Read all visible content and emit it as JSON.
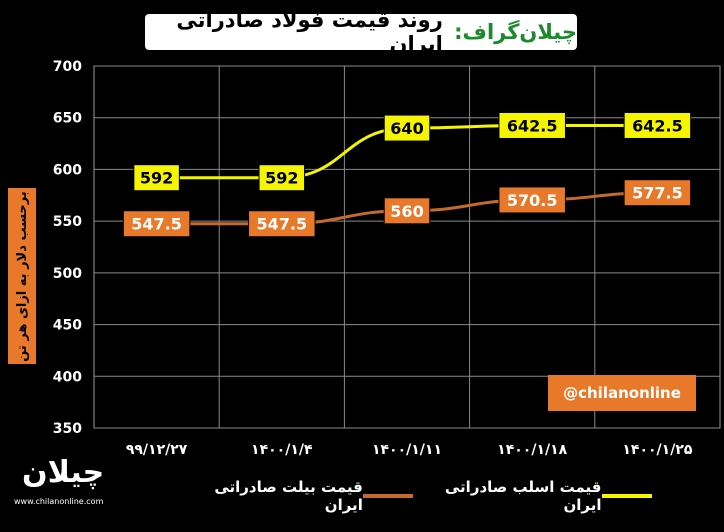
{
  "title": {
    "brand": "چیلان‌گراف",
    "separator": ":",
    "text": "روند قیمت فولاد صادراتی ایران"
  },
  "handle": "@chilanonline",
  "logo": {
    "word": "چیلان",
    "url": "www.chilanonline.com"
  },
  "chart_data": {
    "type": "line",
    "x": [
      "99/12/27",
      "1400/1/4",
      "1400/1/11",
      "1400/1/18",
      "1400/1/25"
    ],
    "x_tick_labels": [
      "۹۹/۱۲/۲۷",
      "۱۴۰۰/۱/۴",
      "۱۴۰۰/۱/۱۱",
      "۱۴۰۰/۱/۱۸",
      "۱۴۰۰/۱/۲۵"
    ],
    "ylabel": "برحسب دلار به ازای هر تن",
    "ylim": [
      350,
      700
    ],
    "yticks": [
      350,
      400,
      450,
      500,
      550,
      600,
      650,
      700
    ],
    "grid": true,
    "legend_position": "bottom",
    "series": [
      {
        "name": "قیمت اسلب صادراتی ایران",
        "values": [
          592,
          592,
          640,
          642.5,
          642.5
        ],
        "labels": [
          "592",
          "592",
          "640",
          "642.5",
          "642.5"
        ],
        "color": "#f5f500",
        "label_bg": "#f5f500",
        "label_color": "#000000"
      },
      {
        "name": "قیمت بیلت صادراتی ایران",
        "values": [
          547.5,
          547.5,
          560,
          570.5,
          577.5
        ],
        "labels": [
          "547.5",
          "547.5",
          "560",
          "570.5",
          "577.5"
        ],
        "color": "#c46a2e",
        "label_bg": "#e8782a",
        "label_color": "#ffffff"
      }
    ]
  }
}
